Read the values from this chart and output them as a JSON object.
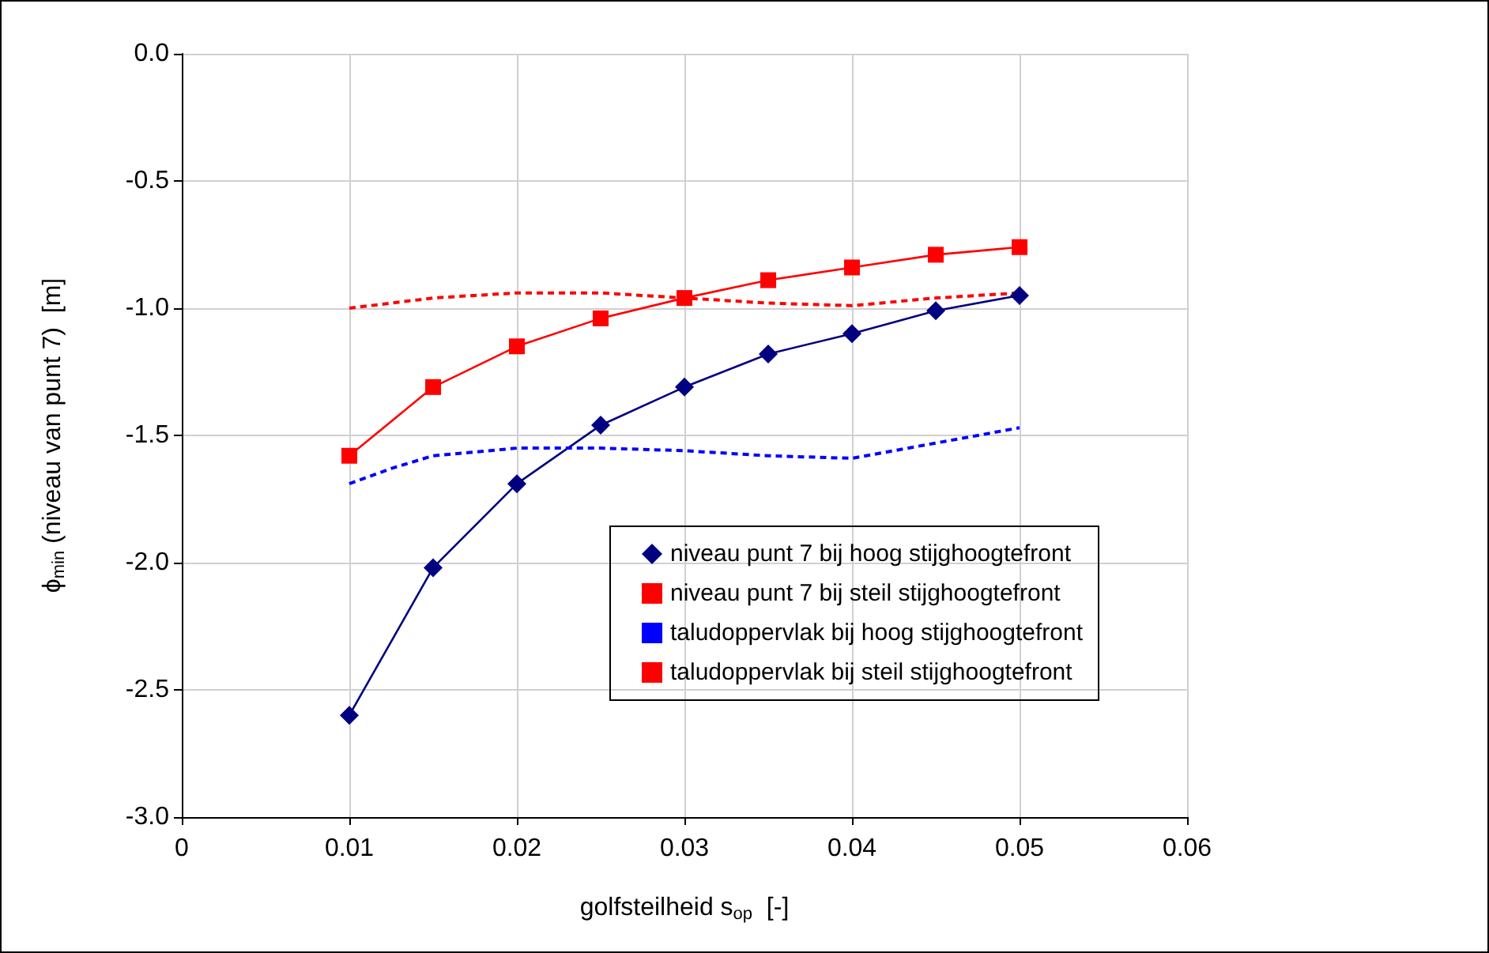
{
  "chart_data": {
    "type": "line",
    "xlabel": "golfsteilheid s$_{op}$  [-]",
    "ylabel": "ϕ$_{min}$ (niveau van punt 7)  [m]",
    "xlim": [
      0,
      0.06
    ],
    "xticks": [
      0,
      0.01,
      0.02,
      0.03,
      0.04,
      0.05,
      0.06
    ],
    "ylim": [
      -3.0,
      0.0
    ],
    "yticks": [
      {
        "value": -3,
        "label": "-3.0"
      },
      {
        "value": -2.5,
        "label": "-2.5"
      },
      {
        "value": -2,
        "label": "-2.0"
      },
      {
        "value": -1.5,
        "label": "-1.5"
      },
      {
        "value": -1,
        "label": "-1.0"
      },
      {
        "value": -0.5,
        "label": "-0.5"
      },
      {
        "value": 0,
        "label": "0.0"
      }
    ],
    "grid": true,
    "legend": "bottom right",
    "series": [
      {
        "name": "niveau punt 7 bij hoog stijghoogtefront",
        "color": "#000080",
        "marker": "diamond",
        "line_style": "solid",
        "x": [
          0.01,
          0.015,
          0.02,
          0.025,
          0.03,
          0.035,
          0.04,
          0.045,
          0.05
        ],
        "values": [
          -2.6,
          -2.02,
          -1.69,
          -1.46,
          -1.31,
          -1.18,
          -1.1,
          -1.01,
          -0.95
        ]
      },
      {
        "name": "niveau punt 7 bij steil stijghoogtefront",
        "color": "#ff0000",
        "marker": "square",
        "line_style": "solid",
        "x": [
          0.01,
          0.015,
          0.02,
          0.025,
          0.03,
          0.035,
          0.04,
          0.045,
          0.05
        ],
        "values": [
          -1.58,
          -1.31,
          -1.15,
          -1.04,
          -0.96,
          -0.89,
          -0.84,
          -0.79,
          -0.76
        ]
      },
      {
        "name": "taludoppervlak bij hoog stijghoogtefront",
        "color": "#0000ff",
        "marker": "none",
        "line_style": "dashed",
        "x": [
          0.01,
          0.0125,
          0.015,
          0.02,
          0.025,
          0.03,
          0.035,
          0.04,
          0.045,
          0.05
        ],
        "values": [
          -1.69,
          -1.63,
          -1.58,
          -1.55,
          -1.55,
          -1.56,
          -1.58,
          -1.59,
          -1.53,
          -1.47
        ]
      },
      {
        "name": "taludoppervlak bij steil stijghoogtefront",
        "color": "#ff0000",
        "marker": "none",
        "line_style": "dashed",
        "x": [
          0.01,
          0.015,
          0.02,
          0.025,
          0.03,
          0.035,
          0.04,
          0.045,
          0.05
        ],
        "values": [
          -1.0,
          -0.96,
          -0.94,
          -0.94,
          -0.96,
          -0.98,
          -0.99,
          -0.96,
          -0.94
        ]
      }
    ]
  }
}
